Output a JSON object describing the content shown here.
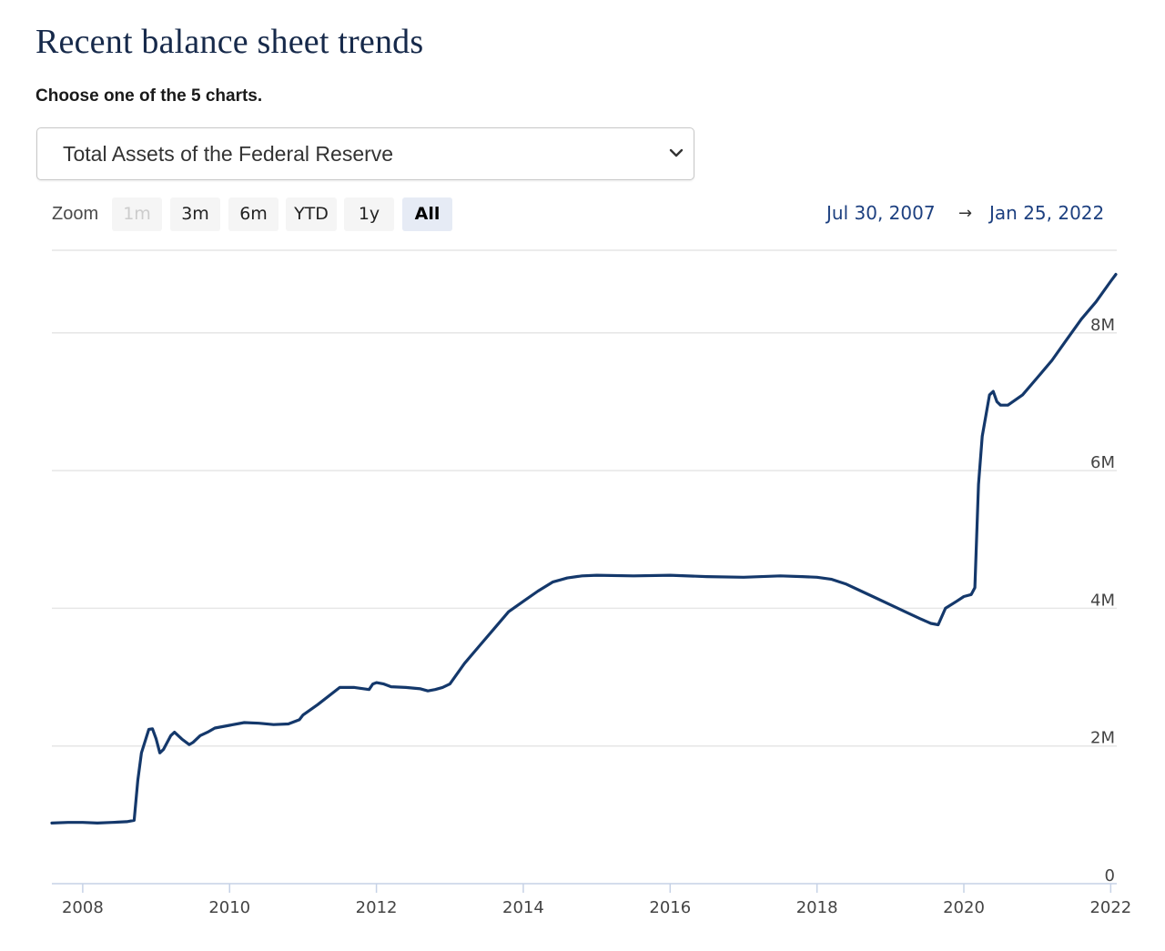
{
  "page": {
    "title": "Recent balance sheet trends",
    "chooser_label": "Choose one of the 5 charts."
  },
  "selector": {
    "selected": "Total Assets of the Federal Reserve"
  },
  "zoom": {
    "label": "Zoom",
    "buttons": [
      {
        "label": "1m",
        "state": "disabled"
      },
      {
        "label": "3m",
        "state": "normal"
      },
      {
        "label": "6m",
        "state": "normal"
      },
      {
        "label": "YTD",
        "state": "normal"
      },
      {
        "label": "1y",
        "state": "normal"
      },
      {
        "label": "All",
        "state": "active"
      }
    ]
  },
  "range": {
    "from": "Jul 30, 2007",
    "arrow": "→",
    "to": "Jan 25, 2022"
  },
  "colors": {
    "line": "#14386b",
    "grid": "#e6e6e6",
    "axis": "#c6d2e6",
    "title": "#16294a",
    "range_text": "#1d4080"
  },
  "chart_data": {
    "type": "line",
    "title": "Total Assets of the Federal Reserve",
    "xlabel": "",
    "ylabel": "",
    "x_ticks": [
      "2008",
      "2010",
      "2012",
      "2014",
      "2016",
      "2018",
      "2020",
      "2022"
    ],
    "y_ticks": [
      "0",
      "2M",
      "4M",
      "6M",
      "8M"
    ],
    "y_tick_values": [
      0,
      2000000,
      4000000,
      6000000,
      8000000
    ],
    "xlim": [
      2007.58,
      2022.07
    ],
    "ylim": [
      0,
      9200000
    ],
    "grid": true,
    "series": [
      {
        "name": "Total Assets",
        "x": [
          2007.58,
          2007.8,
          2008.0,
          2008.2,
          2008.4,
          2008.6,
          2008.7,
          2008.75,
          2008.8,
          2008.9,
          2008.95,
          2009.0,
          2009.05,
          2009.1,
          2009.2,
          2009.25,
          2009.35,
          2009.45,
          2009.5,
          2009.6,
          2009.7,
          2009.8,
          2009.9,
          2010.0,
          2010.2,
          2010.4,
          2010.6,
          2010.8,
          2010.95,
          2011.0,
          2011.2,
          2011.5,
          2011.7,
          2011.9,
          2011.95,
          2012.0,
          2012.1,
          2012.2,
          2012.4,
          2012.6,
          2012.7,
          2012.8,
          2012.9,
          2013.0,
          2013.2,
          2013.4,
          2013.6,
          2013.8,
          2014.0,
          2014.2,
          2014.4,
          2014.6,
          2014.8,
          2015.0,
          2015.5,
          2016.0,
          2016.5,
          2017.0,
          2017.5,
          2017.8,
          2018.0,
          2018.2,
          2018.4,
          2018.6,
          2018.8,
          2019.0,
          2019.2,
          2019.4,
          2019.55,
          2019.65,
          2019.75,
          2019.9,
          2020.0,
          2020.1,
          2020.15,
          2020.2,
          2020.25,
          2020.3,
          2020.35,
          2020.4,
          2020.45,
          2020.5,
          2020.6,
          2020.8,
          2021.0,
          2021.2,
          2021.4,
          2021.6,
          2021.8,
          2022.0,
          2022.07
        ],
        "values": [
          880000,
          890000,
          890000,
          880000,
          890000,
          900000,
          920000,
          1500000,
          1900000,
          2240000,
          2250000,
          2100000,
          1900000,
          1950000,
          2150000,
          2200000,
          2100000,
          2020000,
          2050000,
          2150000,
          2200000,
          2260000,
          2280000,
          2300000,
          2340000,
          2330000,
          2310000,
          2320000,
          2380000,
          2450000,
          2600000,
          2850000,
          2850000,
          2820000,
          2900000,
          2920000,
          2900000,
          2860000,
          2850000,
          2830000,
          2800000,
          2820000,
          2850000,
          2900000,
          3200000,
          3450000,
          3700000,
          3950000,
          4100000,
          4250000,
          4380000,
          4440000,
          4470000,
          4480000,
          4470000,
          4480000,
          4460000,
          4450000,
          4470000,
          4460000,
          4450000,
          4420000,
          4350000,
          4250000,
          4150000,
          4050000,
          3950000,
          3850000,
          3780000,
          3760000,
          4000000,
          4100000,
          4170000,
          4200000,
          4300000,
          5800000,
          6500000,
          6800000,
          7100000,
          7150000,
          7000000,
          6950000,
          6950000,
          7100000,
          7350000,
          7600000,
          7900000,
          8200000,
          8450000,
          8750000,
          8850000
        ]
      }
    ]
  }
}
